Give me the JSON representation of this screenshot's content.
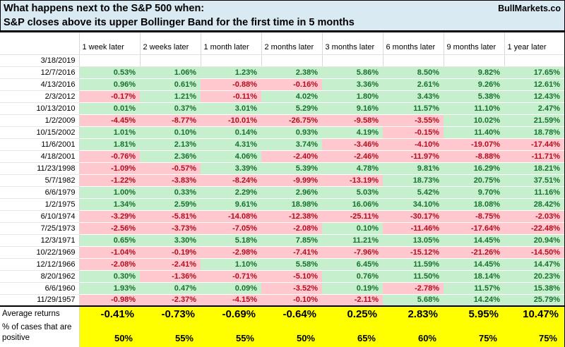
{
  "title": {
    "line1": "What happens next to the S&P 500 when:",
    "line2": "S&P closes above its upper Bollinger Band for the first time in 5 months",
    "brand": "BullMarkets.co"
  },
  "colors": {
    "title_bg": "#daeaf3",
    "positive_bg": "#c6efce",
    "positive_text": "#17712c",
    "negative_bg": "#ffc7ce",
    "negative_text": "#b30d1e",
    "summary_bg": "#ffff00"
  },
  "chart_data": {
    "type": "table",
    "title": "What happens next to the S&P 500 when: S&P closes above its upper Bollinger Band for the first time in 5 months",
    "columns": [
      "1 week later",
      "2 weeks later",
      "1 month later",
      "2 months later",
      "3 months later",
      "6 months later",
      "9 months later",
      "1 year later"
    ],
    "rows": [
      {
        "date": "3/18/2019",
        "values": []
      },
      {
        "date": "12/7/2016",
        "values": [
          "0.53%",
          "1.06%",
          "1.23%",
          "2.38%",
          "5.86%",
          "8.50%",
          "9.82%",
          "17.65%"
        ]
      },
      {
        "date": "4/13/2016",
        "values": [
          "0.96%",
          "0.61%",
          "-0.88%",
          "-0.16%",
          "3.36%",
          "2.61%",
          "9.26%",
          "12.61%"
        ]
      },
      {
        "date": "2/3/2012",
        "values": [
          "-0.17%",
          "1.21%",
          "-0.11%",
          "4.02%",
          "1.80%",
          "3.43%",
          "5.38%",
          "12.43%"
        ]
      },
      {
        "date": "10/13/2010",
        "values": [
          "0.01%",
          "0.37%",
          "3.01%",
          "5.29%",
          "9.16%",
          "11.57%",
          "11.10%",
          "2.47%"
        ]
      },
      {
        "date": "1/2/2009",
        "values": [
          "-4.45%",
          "-8.77%",
          "-10.01%",
          "-26.75%",
          "-9.58%",
          "-3.55%",
          "10.02%",
          "21.59%"
        ]
      },
      {
        "date": "10/15/2002",
        "values": [
          "1.01%",
          "0.10%",
          "0.14%",
          "0.93%",
          "4.19%",
          "-0.15%",
          "11.40%",
          "18.78%"
        ]
      },
      {
        "date": "11/6/2001",
        "values": [
          "1.81%",
          "2.13%",
          "4.31%",
          "3.74%",
          "-3.46%",
          "-4.10%",
          "-19.07%",
          "-17.44%"
        ]
      },
      {
        "date": "4/18/2001",
        "values": [
          "-0.76%",
          "2.36%",
          "4.06%",
          "-2.40%",
          "-2.46%",
          "-11.97%",
          "-8.88%",
          "-11.71%"
        ]
      },
      {
        "date": "11/23/1998",
        "values": [
          "-1.09%",
          "-0.57%",
          "3.39%",
          "5.39%",
          "4.78%",
          "9.81%",
          "16.29%",
          "18.21%"
        ]
      },
      {
        "date": "5/7/1982",
        "values": [
          "-1.22%",
          "-3.83%",
          "-8.24%",
          "-9.99%",
          "-13.19%",
          "18.73%",
          "20.75%",
          "37.51%"
        ]
      },
      {
        "date": "6/6/1979",
        "values": [
          "1.00%",
          "0.33%",
          "2.29%",
          "2.96%",
          "5.03%",
          "5.42%",
          "9.70%",
          "11.16%"
        ]
      },
      {
        "date": "1/2/1975",
        "values": [
          "1.34%",
          "2.59%",
          "9.61%",
          "18.98%",
          "16.06%",
          "34.10%",
          "18.08%",
          "28.42%"
        ]
      },
      {
        "date": "6/10/1974",
        "values": [
          "-3.29%",
          "-5.81%",
          "-14.08%",
          "-12.38%",
          "-25.11%",
          "-30.17%",
          "-8.75%",
          "-2.03%"
        ]
      },
      {
        "date": "7/25/1973",
        "values": [
          "-2.56%",
          "-3.73%",
          "-7.05%",
          "-2.08%",
          "0.10%",
          "-11.46%",
          "-17.64%",
          "-22.48%"
        ]
      },
      {
        "date": "12/3/1971",
        "values": [
          "0.65%",
          "3.30%",
          "5.18%",
          "7.85%",
          "11.21%",
          "13.05%",
          "14.45%",
          "20.94%"
        ]
      },
      {
        "date": "10/22/1969",
        "values": [
          "-1.04%",
          "-0.19%",
          "-2.98%",
          "-7.41%",
          "-7.96%",
          "-15.12%",
          "-21.26%",
          "-14.50%"
        ]
      },
      {
        "date": "12/12/1966",
        "values": [
          "-2.08%",
          "-2.41%",
          "1.10%",
          "5.58%",
          "6.45%",
          "11.59%",
          "14.45%",
          "14.47%"
        ]
      },
      {
        "date": "8/20/1962",
        "values": [
          "0.30%",
          "-1.36%",
          "-0.71%",
          "-5.10%",
          "0.76%",
          "11.50%",
          "18.14%",
          "20.23%"
        ]
      },
      {
        "date": "6/6/1960",
        "values": [
          "1.93%",
          "0.47%",
          "0.09%",
          "-3.52%",
          "0.19%",
          "-2.78%",
          "11.57%",
          "15.38%"
        ]
      },
      {
        "date": "11/29/1957",
        "values": [
          "-0.98%",
          "-2.37%",
          "-4.15%",
          "-0.10%",
          "-2.11%",
          "5.68%",
          "14.24%",
          "25.79%"
        ]
      }
    ],
    "summary": {
      "average_label": "Average returns",
      "average_values": [
        "-0.41%",
        "-0.73%",
        "-0.69%",
        "-0.64%",
        "0.25%",
        "2.83%",
        "5.95%",
        "10.47%"
      ],
      "positive_label": "% of cases that are positive",
      "positive_values": [
        "50%",
        "55%",
        "55%",
        "50%",
        "65%",
        "60%",
        "75%",
        "75%"
      ]
    }
  }
}
